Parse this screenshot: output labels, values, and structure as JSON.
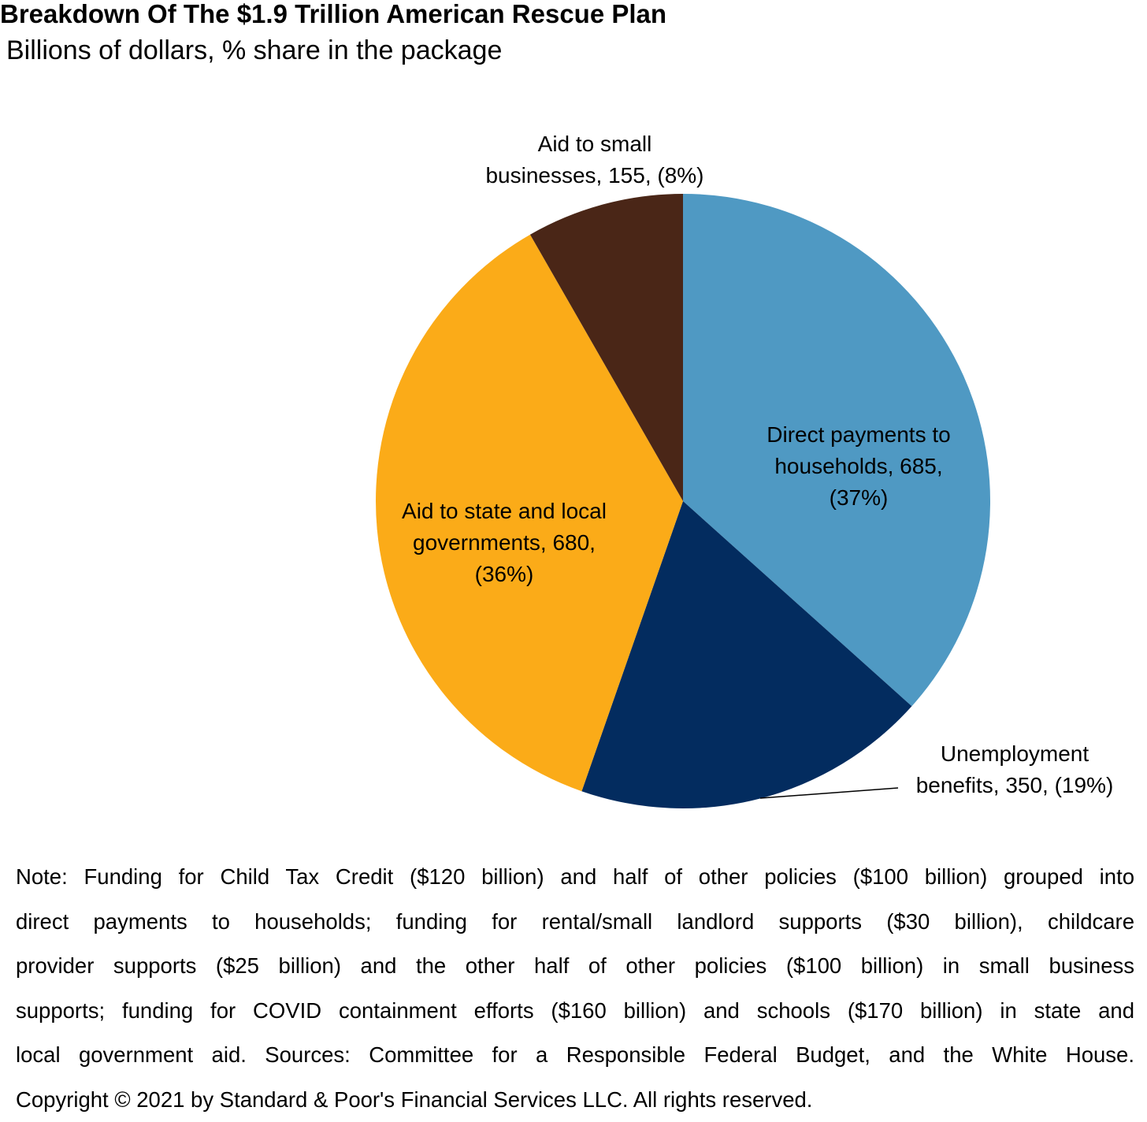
{
  "chart_data": {
    "type": "pie",
    "title": "Breakdown Of The $1.9 Trillion American Rescue Plan",
    "subtitle": "Billions of dollars, % share in the package",
    "unit": "Billions of dollars",
    "slices": [
      {
        "name": "Direct payments to households",
        "value": 685,
        "share": 37,
        "label_lines": [
          "Direct payments to",
          "households, 685,",
          "(37%)"
        ],
        "color": "#4f99c3"
      },
      {
        "name": "Unemployment benefits",
        "value": 350,
        "share": 19,
        "label_lines": [
          "Unemployment",
          "benefits, 350, (19%)"
        ],
        "color": "#032c5f"
      },
      {
        "name": "Aid to state and local governments",
        "value": 680,
        "share": 36,
        "label_lines": [
          "Aid to state and local",
          "governments, 680,",
          "(36%)"
        ],
        "color": "#fbab18"
      },
      {
        "name": "Aid to small businesses",
        "value": 155,
        "share": 8,
        "label_lines": [
          "Aid to small",
          "businesses, 155, (8%)"
        ],
        "color": "#4a2617"
      }
    ],
    "start_angle": "12 o'clock",
    "direction": "clockwise"
  },
  "note": {
    "lines": [
      "Note: Funding for Child Tax Credit ($120 billion) and half of other policies ($100 billion) grouped into",
      "direct payments to households; funding for rental/small landlord supports ($30 billion), childcare",
      "provider supports ($25 billion) and the other half of other policies ($100 billion) in small business",
      "supports; funding for COVID containment efforts ($160 billion) and schools ($170 billion) in state and",
      "local government aid. Sources: Committee for a Responsible Federal Budget, and the White House.",
      "Copyright © 2021 by Standard & Poor's Financial Services LLC. All rights reserved."
    ]
  }
}
